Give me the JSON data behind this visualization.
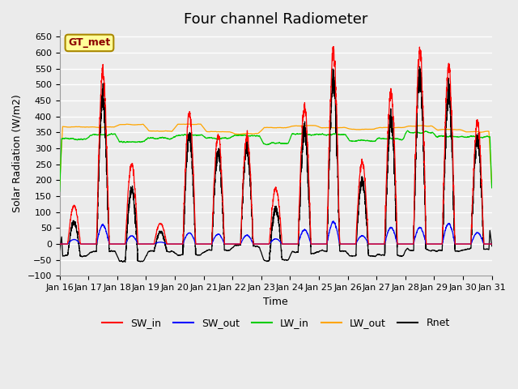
{
  "title": "Four channel Radiometer",
  "xlabel": "Time",
  "ylabel": "Solar Radiation (W/m2)",
  "ylim": [
    -100,
    670
  ],
  "x_tick_labels": [
    "Jan 16",
    "Jan 17",
    "Jan 18",
    "Jan 19",
    "Jan 20",
    "Jan 21",
    "Jan 22",
    "Jan 23",
    "Jan 24",
    "Jan 25",
    "Jan 26",
    "Jan 27",
    "Jan 28",
    "Jan 29",
    "Jan 30",
    "Jan 31"
  ],
  "num_days": 15,
  "colors": {
    "SW_in": "#ff0000",
    "SW_out": "#0000ff",
    "LW_in": "#00cc00",
    "LW_out": "#ffa500",
    "Rnet": "#000000"
  },
  "legend_label_box": "GT_met",
  "legend_box_facecolor": "#ffff99",
  "legend_box_edgecolor": "#aa8800",
  "plot_background": "#ebebeb",
  "grid_color": "#ffffff",
  "title_fontsize": 13,
  "axis_label_fontsize": 9,
  "tick_fontsize": 8,
  "points_per_day": 288,
  "seed": 42,
  "day_peaks": [
    120,
    530,
    250,
    65,
    410,
    340,
    340,
    175,
    430,
    600,
    260,
    475,
    600,
    550,
    380
  ]
}
